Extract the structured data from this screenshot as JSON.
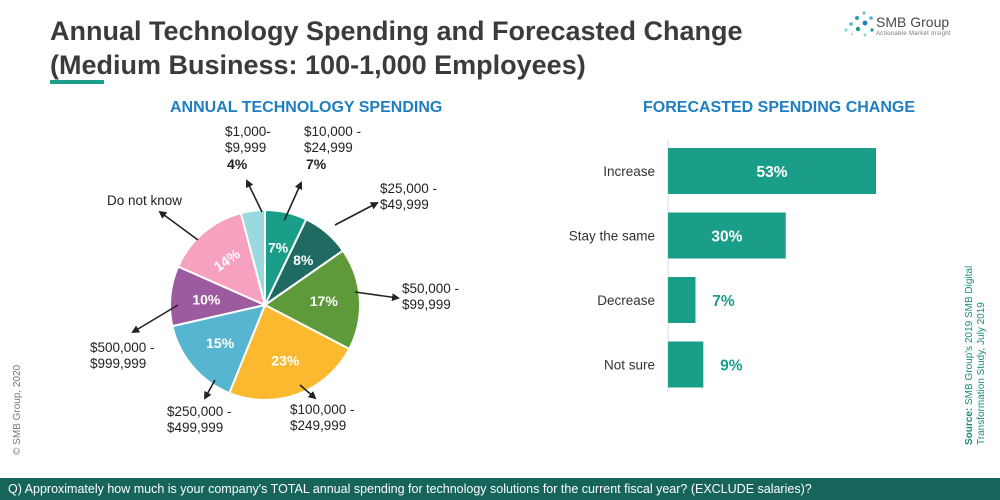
{
  "header": {
    "title_line1": "Annual Technology Spending and Forecasted Change",
    "title_line2": "(Medium Business: 100-1,000 Employees)"
  },
  "logo": {
    "name": "SMB Group",
    "tagline": "Actionable Market Insight"
  },
  "side": {
    "copyright": "© SMB Group, 2020",
    "source_label": "Source:",
    "source_line1": "SMB Group's 2019 SMB Digital",
    "source_line2": "Transformation Study, July 2019"
  },
  "footer": {
    "question": "Q) Approximately how much is your company's TOTAL annual spending for technology solutions for the current fiscal year? (EXCLUDE salaries)?"
  },
  "colors": {
    "accent": "#1a9e8a",
    "section_title": "#1f7ec0",
    "footer_bg": "#16645a"
  },
  "chart_data": [
    {
      "type": "pie",
      "title": "ANNUAL TECHNOLOGY SPENDING",
      "slices": [
        {
          "label_lines": [
            "$10,000 -",
            "$24,999"
          ],
          "value": 7,
          "value_label": "7%",
          "color": "#1a9e8a"
        },
        {
          "label_lines": [
            "$25,000 -",
            "$49,999"
          ],
          "value": 8,
          "value_label": "8%",
          "color": "#1f6b62"
        },
        {
          "label_lines": [
            "$50,000 -",
            "$99,999"
          ],
          "value": 17,
          "value_label": "17%",
          "color": "#5f9a3a"
        },
        {
          "label_lines": [
            "$100,000 -",
            "$249,999"
          ],
          "value": 23,
          "value_label": "23%",
          "color": "#fbb92f"
        },
        {
          "label_lines": [
            "$250,000 -",
            "$499,999"
          ],
          "value": 15,
          "value_label": "15%",
          "color": "#56b5d0"
        },
        {
          "label_lines": [
            "$500,000 -",
            "$999,999"
          ],
          "value": 10,
          "value_label": "10%",
          "color": "#9c5b9e"
        },
        {
          "label_lines": [
            "Do not know"
          ],
          "value": 14,
          "value_label": "14%",
          "color": "#f7a1c0"
        },
        {
          "label_lines": [
            "$1,000-",
            "$9,999"
          ],
          "value": 4,
          "value_label": "4%",
          "color": "#9ad9dd"
        }
      ]
    },
    {
      "type": "bar",
      "orientation": "horizontal",
      "title": "FORECASTED SPENDING CHANGE",
      "categories": [
        "Increase",
        "Stay the same",
        "Decrease",
        "Not sure"
      ],
      "values": [
        53,
        30,
        7,
        9
      ],
      "value_labels": [
        "53%",
        "30%",
        "7%",
        "9%"
      ],
      "xlim": [
        0,
        53
      ],
      "color": "#1a9e8a"
    }
  ]
}
